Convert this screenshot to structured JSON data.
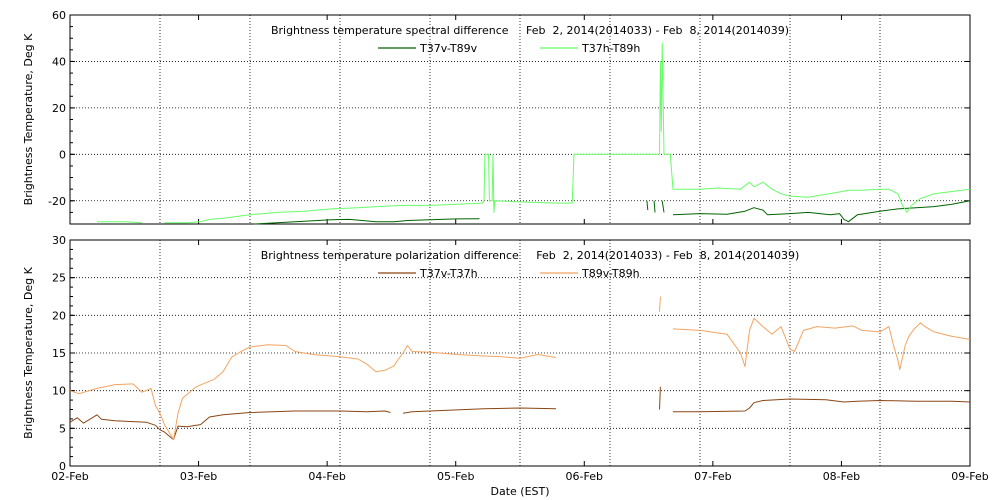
{
  "chart_data": [
    {
      "type": "line",
      "title": "Brightness temperature spectral difference     Feb  2, 2014(2014033) - Feb  8, 2014(2014039)",
      "ylabel": "Brightness Temperature, Deg K",
      "xlabel": "",
      "x_range": [
        "2014-02-02",
        "2014-02-09"
      ],
      "ylim": [
        -30,
        60
      ],
      "yticks": [
        -20,
        0,
        20,
        40,
        60
      ],
      "ytick_labels": [
        "-20",
        "0",
        "20",
        "40",
        "60"
      ],
      "grid": true,
      "legend": "top-center",
      "series": [
        {
          "name": "T37v-T89v",
          "color": "#006400",
          "points": [
            [
              0.0,
              null
            ],
            [
              1.0,
              null
            ],
            [
              2.0,
              null
            ],
            [
              2.05,
              -30
            ],
            [
              2.3,
              -29.5
            ],
            [
              2.6,
              -28.8
            ],
            [
              2.9,
              -28.2
            ],
            [
              3.1,
              -28
            ],
            [
              3.2,
              -28.3
            ],
            [
              3.4,
              -29
            ],
            [
              3.6,
              -29
            ],
            [
              3.75,
              -28.5
            ],
            [
              4.0,
              -28.2
            ],
            [
              4.3,
              -27.8
            ],
            [
              4.55,
              -27.7
            ],
            [
              4.6,
              null
            ],
            [
              4.63,
              -24
            ],
            [
              4.66,
              null
            ],
            [
              4.7,
              -23
            ],
            [
              4.72,
              null
            ],
            [
              5.0,
              null
            ],
            [
              5.6,
              null
            ],
            [
              6.0,
              null
            ],
            [
              6.41,
              -20
            ],
            [
              6.42,
              -24
            ],
            [
              6.43,
              null
            ],
            [
              6.49,
              -20
            ],
            [
              6.5,
              -25
            ],
            [
              6.51,
              null
            ],
            [
              6.58,
              -20
            ],
            [
              6.6,
              -25
            ],
            [
              6.62,
              null
            ],
            [
              6.7,
              -26
            ],
            [
              7.0,
              -25.5
            ],
            [
              7.3,
              -25.8
            ],
            [
              7.5,
              -24.5
            ],
            [
              7.6,
              -23
            ],
            [
              7.7,
              -24
            ],
            [
              7.75,
              -26
            ],
            [
              8.0,
              -25.5
            ],
            [
              8.2,
              -25
            ],
            [
              8.45,
              -26
            ],
            [
              8.55,
              -25.5
            ],
            [
              8.6,
              -28
            ],
            [
              8.65,
              -29
            ],
            [
              8.75,
              -26
            ],
            [
              9.0,
              -24.5
            ],
            [
              9.2,
              -23.5
            ],
            [
              9.4,
              -23
            ],
            [
              9.6,
              -22.5
            ],
            [
              9.8,
              -21.5
            ],
            [
              10.0,
              -20
            ]
          ]
        },
        {
          "name": "T37h-T89h",
          "color": "#66ff66",
          "points": [
            [
              0.0,
              null
            ],
            [
              0.3,
              -29
            ],
            [
              0.6,
              -29
            ],
            [
              0.8,
              -29.5
            ],
            [
              1.0,
              null
            ],
            [
              1.05,
              -29.5
            ],
            [
              1.3,
              -29.5
            ],
            [
              1.45,
              -29
            ],
            [
              1.55,
              -28
            ],
            [
              1.7,
              -27.5
            ],
            [
              2.0,
              -26
            ],
            [
              2.15,
              -25.5
            ],
            [
              2.3,
              -25
            ],
            [
              2.6,
              -24.5
            ],
            [
              2.9,
              -23.5
            ],
            [
              3.2,
              -23
            ],
            [
              3.4,
              -22.5
            ],
            [
              3.7,
              -22
            ],
            [
              4.0,
              -22
            ],
            [
              4.3,
              -21.5
            ],
            [
              4.58,
              -21
            ],
            [
              4.6,
              -20
            ],
            [
              4.61,
              0
            ],
            [
              4.65,
              0
            ],
            [
              4.66,
              -20
            ],
            [
              4.69,
              -20
            ],
            [
              4.7,
              0
            ],
            [
              4.71,
              -25
            ],
            [
              4.72,
              -20
            ],
            [
              5.0,
              -20.5
            ],
            [
              5.4,
              -21
            ],
            [
              5.58,
              -21
            ],
            [
              5.6,
              0
            ],
            [
              6.35,
              0
            ],
            [
              6.4,
              0
            ],
            [
              6.45,
              0
            ],
            [
              6.5,
              0
            ],
            [
              6.55,
              0
            ],
            [
              6.56,
              40
            ],
            [
              6.57,
              10
            ],
            [
              6.58,
              48
            ],
            [
              6.6,
              0
            ],
            [
              6.67,
              0
            ],
            [
              6.7,
              -15
            ],
            [
              7.0,
              -15
            ],
            [
              7.2,
              -14.5
            ],
            [
              7.45,
              -15
            ],
            [
              7.55,
              -12
            ],
            [
              7.6,
              -14
            ],
            [
              7.7,
              -12
            ],
            [
              7.8,
              -15
            ],
            [
              7.9,
              -17
            ],
            [
              8.0,
              -18
            ],
            [
              8.2,
              -18.5
            ],
            [
              8.35,
              -17.5
            ],
            [
              8.5,
              -16.5
            ],
            [
              8.65,
              -15.5
            ],
            [
              8.8,
              -15.5
            ],
            [
              9.0,
              -15
            ],
            [
              9.1,
              -15
            ],
            [
              9.2,
              -17
            ],
            [
              9.25,
              -22
            ],
            [
              9.3,
              -25
            ],
            [
              9.35,
              -22
            ],
            [
              9.45,
              -19
            ],
            [
              9.6,
              -17
            ],
            [
              9.8,
              -16
            ],
            [
              10.0,
              -15
            ]
          ]
        }
      ]
    },
    {
      "type": "line",
      "title": "Brightness temperature polarization difference     Feb  2, 2014(2014033) - Feb  8, 2014(2014039)",
      "ylabel": "Brightness Temperature, Deg K",
      "xlabel": "Date (EST)",
      "x_range": [
        "2014-02-02",
        "2014-02-09"
      ],
      "ylim": [
        0,
        30
      ],
      "yticks": [
        0,
        5,
        10,
        15,
        20,
        25,
        30
      ],
      "ytick_labels": [
        "0",
        "5",
        "10",
        "15",
        "20",
        "25",
        "30"
      ],
      "xtick_labels": [
        "02-Feb",
        "03-Feb",
        "04-Feb",
        "05-Feb",
        "06-Feb",
        "07-Feb",
        "08-Feb",
        "09-Feb"
      ],
      "grid": true,
      "legend": "top-center",
      "series": [
        {
          "name": "T37v-T37h",
          "color": "#8b4513",
          "points": [
            [
              0.0,
              5.8
            ],
            [
              0.08,
              6.4
            ],
            [
              0.15,
              5.7
            ],
            [
              0.22,
              6.2
            ],
            [
              0.3,
              6.8
            ],
            [
              0.35,
              6.2
            ],
            [
              0.5,
              6.0
            ],
            [
              0.7,
              5.9
            ],
            [
              0.85,
              5.8
            ],
            [
              0.95,
              5.4
            ],
            [
              1.0,
              4.8
            ],
            [
              1.05,
              4.5
            ],
            [
              1.1,
              4.0
            ],
            [
              1.15,
              3.5
            ],
            [
              1.2,
              5.3
            ],
            [
              1.3,
              5.2
            ],
            [
              1.45,
              5.5
            ],
            [
              1.55,
              6.5
            ],
            [
              1.7,
              6.8
            ],
            [
              2.0,
              7.1
            ],
            [
              2.5,
              7.3
            ],
            [
              3.0,
              7.3
            ],
            [
              3.3,
              7.2
            ],
            [
              3.5,
              7.3
            ],
            [
              3.56,
              7.1
            ],
            [
              3.6,
              null
            ],
            [
              3.7,
              7.0
            ],
            [
              3.8,
              7.2
            ],
            [
              4.2,
              7.4
            ],
            [
              4.6,
              7.6
            ],
            [
              5.0,
              7.7
            ],
            [
              5.4,
              7.6
            ],
            [
              5.45,
              null
            ],
            [
              6.55,
              7.5
            ],
            [
              6.56,
              10.5
            ],
            [
              6.57,
              null
            ],
            [
              6.7,
              7.2
            ],
            [
              7.0,
              7.2
            ],
            [
              7.5,
              7.3
            ],
            [
              7.55,
              7.7
            ],
            [
              7.6,
              8.4
            ],
            [
              7.7,
              8.7
            ],
            [
              8.0,
              8.9
            ],
            [
              8.4,
              8.8
            ],
            [
              8.6,
              8.5
            ],
            [
              8.75,
              8.6
            ],
            [
              9.0,
              8.7
            ],
            [
              9.4,
              8.6
            ],
            [
              9.8,
              8.6
            ],
            [
              10.0,
              8.5
            ]
          ]
        },
        {
          "name": "T89v-T89h",
          "color": "#f4a460",
          "points": [
            [
              0.0,
              10.0
            ],
            [
              0.1,
              9.6
            ],
            [
              0.3,
              10.3
            ],
            [
              0.5,
              10.8
            ],
            [
              0.7,
              10.9
            ],
            [
              0.8,
              9.8
            ],
            [
              0.9,
              10.3
            ],
            [
              0.95,
              8.0
            ],
            [
              1.0,
              7.0
            ],
            [
              1.05,
              5.5
            ],
            [
              1.1,
              4.5
            ],
            [
              1.15,
              3.5
            ],
            [
              1.2,
              7.0
            ],
            [
              1.25,
              9.0
            ],
            [
              1.3,
              9.5
            ],
            [
              1.4,
              10.5
            ],
            [
              1.5,
              11.0
            ],
            [
              1.6,
              11.5
            ],
            [
              1.7,
              12.5
            ],
            [
              1.8,
              14.5
            ],
            [
              1.9,
              15.2
            ],
            [
              2.0,
              15.8
            ],
            [
              2.2,
              16.1
            ],
            [
              2.4,
              16.0
            ],
            [
              2.5,
              15.2
            ],
            [
              2.7,
              14.8
            ],
            [
              3.0,
              14.5
            ],
            [
              3.2,
              14.2
            ],
            [
              3.3,
              13.5
            ],
            [
              3.4,
              12.5
            ],
            [
              3.5,
              12.7
            ],
            [
              3.6,
              13.3
            ],
            [
              3.65,
              14.2
            ],
            [
              3.7,
              15.0
            ],
            [
              3.75,
              16.0
            ],
            [
              3.8,
              15.2
            ],
            [
              4.0,
              15.1
            ],
            [
              4.3,
              14.8
            ],
            [
              4.6,
              14.6
            ],
            [
              4.8,
              14.5
            ],
            [
              5.0,
              14.3
            ],
            [
              5.2,
              14.8
            ],
            [
              5.4,
              14.4
            ],
            [
              5.45,
              null
            ],
            [
              6.55,
              20.5
            ],
            [
              6.56,
              22.5
            ],
            [
              6.57,
              null
            ],
            [
              6.7,
              18.2
            ],
            [
              7.0,
              18.0
            ],
            [
              7.3,
              17.5
            ],
            [
              7.45,
              15.0
            ],
            [
              7.5,
              13.2
            ],
            [
              7.55,
              18.0
            ],
            [
              7.6,
              19.6
            ],
            [
              7.7,
              18.5
            ],
            [
              7.8,
              17.5
            ],
            [
              7.9,
              18.5
            ],
            [
              8.0,
              15.5
            ],
            [
              8.05,
              15.2
            ],
            [
              8.15,
              18.0
            ],
            [
              8.3,
              18.5
            ],
            [
              8.5,
              18.3
            ],
            [
              8.7,
              18.6
            ],
            [
              8.8,
              18.0
            ],
            [
              9.0,
              17.8
            ],
            [
              9.1,
              18.5
            ],
            [
              9.15,
              16.0
            ],
            [
              9.2,
              14.0
            ],
            [
              9.22,
              12.8
            ],
            [
              9.28,
              16.0
            ],
            [
              9.32,
              17.2
            ],
            [
              9.38,
              18.2
            ],
            [
              9.45,
              19.0
            ],
            [
              9.5,
              18.5
            ],
            [
              9.6,
              17.8
            ],
            [
              9.8,
              17.2
            ],
            [
              10.0,
              16.8
            ]
          ]
        }
      ]
    }
  ]
}
